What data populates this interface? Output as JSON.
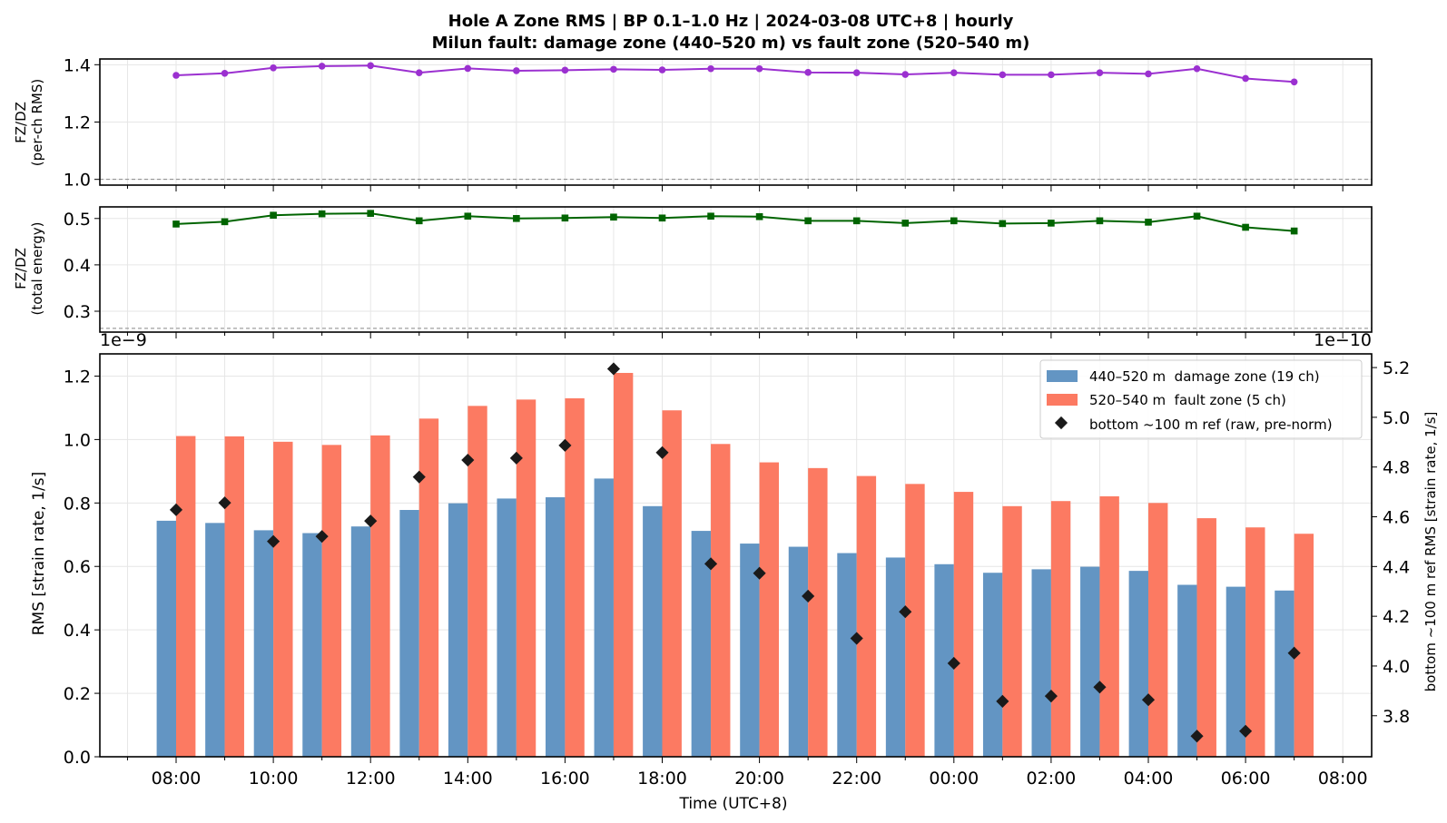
{
  "title_line1": "Hole A Zone RMS  |  BP 0.1–1.0 Hz  |  2024-03-08 UTC+8  |  hourly",
  "title_line2": "Milun fault: damage zone (440–520 m) vs fault zone (520–540 m)",
  "colors": {
    "damage": "#6395c3",
    "fault": "#fc7a62",
    "ratio_rms": "#9b30d0",
    "ratio_energy": "#006400",
    "ref": "#1a1a1a",
    "grid": "#e6e6e6",
    "dashed": "#888888"
  },
  "chart_data": [
    {
      "type": "line",
      "ylabel_line1": "FZ/DZ",
      "ylabel_line2": "(per-ch RMS)",
      "ylim": [
        0.98,
        1.42
      ],
      "yticks": [
        "1.0",
        "1.2",
        "1.4"
      ],
      "ytick_values": [
        1.0,
        1.2,
        1.4
      ],
      "reference_line": 1.0,
      "x": [
        "08:00",
        "09:00",
        "10:00",
        "11:00",
        "12:00",
        "13:00",
        "14:00",
        "15:00",
        "16:00",
        "17:00",
        "18:00",
        "19:00",
        "20:00",
        "21:00",
        "22:00",
        "23:00",
        "00:00",
        "01:00",
        "02:00",
        "03:00",
        "04:00",
        "05:00",
        "06:00",
        "07:00"
      ],
      "values": [
        1.363,
        1.37,
        1.389,
        1.395,
        1.397,
        1.372,
        1.387,
        1.379,
        1.381,
        1.384,
        1.382,
        1.386,
        1.386,
        1.373,
        1.372,
        1.366,
        1.372,
        1.365,
        1.365,
        1.372,
        1.368,
        1.386,
        1.352,
        1.34
      ]
    },
    {
      "type": "line",
      "ylabel_line1": "FZ/DZ",
      "ylabel_line2": "(total energy)",
      "ylim": [
        0.255,
        0.525
      ],
      "yticks": [
        "0.3",
        "0.4",
        "0.5"
      ],
      "ytick_values": [
        0.3,
        0.4,
        0.5
      ],
      "reference_line": 0.263,
      "x": [
        "08:00",
        "09:00",
        "10:00",
        "11:00",
        "12:00",
        "13:00",
        "14:00",
        "15:00",
        "16:00",
        "17:00",
        "18:00",
        "19:00",
        "20:00",
        "21:00",
        "22:00",
        "23:00",
        "00:00",
        "01:00",
        "02:00",
        "03:00",
        "04:00",
        "05:00",
        "06:00",
        "07:00"
      ],
      "values": [
        0.488,
        0.493,
        0.507,
        0.51,
        0.511,
        0.495,
        0.505,
        0.5,
        0.501,
        0.503,
        0.501,
        0.505,
        0.504,
        0.495,
        0.495,
        0.49,
        0.495,
        0.489,
        0.49,
        0.495,
        0.492,
        0.505,
        0.481,
        0.473
      ]
    },
    {
      "type": "bar",
      "xlabel": "Time (UTC+8)",
      "ylabel": "RMS  [strain rate, 1/s]",
      "ylabel_right": "bottom ~100 m ref RMS  [strain rate, 1/s]",
      "offset_left": "1e−9",
      "offset_right": "1e−10",
      "ylim": [
        0,
        1.27
      ],
      "yticks": [
        "0.0",
        "0.2",
        "0.4",
        "0.6",
        "0.8",
        "1.0",
        "1.2"
      ],
      "ytick_values": [
        0.0,
        0.2,
        0.4,
        0.6,
        0.8,
        1.0,
        1.2
      ],
      "ylim_right": [
        3.635,
        5.255
      ],
      "yticks_right": [
        "3.8",
        "4.0",
        "4.2",
        "4.4",
        "4.6",
        "4.8",
        "5.0",
        "5.2"
      ],
      "ytick_values_right": [
        3.8,
        4.0,
        4.2,
        4.4,
        4.6,
        4.8,
        5.0,
        5.2
      ],
      "xticks": [
        "08:00",
        "10:00",
        "12:00",
        "14:00",
        "16:00",
        "18:00",
        "20:00",
        "22:00",
        "00:00",
        "02:00",
        "04:00",
        "06:00",
        "08:00"
      ],
      "categories": [
        "08:00",
        "09:00",
        "10:00",
        "11:00",
        "12:00",
        "13:00",
        "14:00",
        "15:00",
        "16:00",
        "17:00",
        "18:00",
        "19:00",
        "20:00",
        "21:00",
        "22:00",
        "23:00",
        "00:00",
        "01:00",
        "02:00",
        "03:00",
        "04:00",
        "05:00",
        "06:00",
        "07:00"
      ],
      "series": [
        {
          "name": "440–520 m  damage zone (19 ch)",
          "values": [
            0.744,
            0.737,
            0.714,
            0.705,
            0.726,
            0.778,
            0.799,
            0.814,
            0.818,
            0.877,
            0.79,
            0.712,
            0.672,
            0.662,
            0.642,
            0.628,
            0.607,
            0.58,
            0.591,
            0.599,
            0.586,
            0.542,
            0.536,
            0.524
          ]
        },
        {
          "name": "520–540 m  fault zone (5 ch)",
          "values": [
            1.011,
            1.01,
            0.993,
            0.983,
            1.013,
            1.066,
            1.106,
            1.126,
            1.13,
            1.21,
            1.092,
            0.986,
            0.928,
            0.91,
            0.885,
            0.86,
            0.835,
            0.79,
            0.806,
            0.821,
            0.8,
            0.752,
            0.723,
            0.703
          ]
        },
        {
          "name": "bottom ~100 m ref (raw, pre-norm)",
          "axis": "right",
          "values": [
            4.628,
            4.656,
            4.501,
            4.521,
            4.583,
            4.76,
            4.828,
            4.836,
            4.887,
            5.195,
            4.858,
            4.411,
            4.373,
            4.281,
            4.111,
            4.218,
            4.011,
            3.858,
            3.879,
            3.915,
            3.864,
            3.718,
            3.738,
            4.052
          ]
        }
      ],
      "legend_position": "top-right",
      "grid": true
    }
  ]
}
